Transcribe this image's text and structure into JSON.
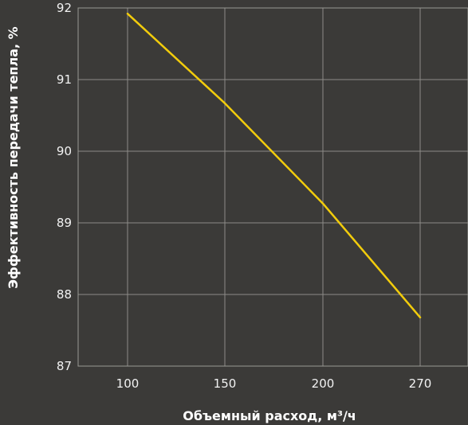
{
  "chart_data": {
    "type": "line",
    "x_categories": [
      "100",
      "150",
      "200",
      "270"
    ],
    "series": [
      {
        "values": [
          91.92,
          90.67,
          89.27,
          87.68
        ]
      }
    ],
    "ylim": [
      87,
      92
    ],
    "yticks": [
      "87",
      "88",
      "89",
      "90",
      "91",
      "92"
    ],
    "xlabel": "Объемный расход, м³/ч",
    "ylabel": "Эффективность передачи тепла, %",
    "grid": true,
    "colors": {
      "line": "#f2cc0c",
      "background": "#3b3a38"
    }
  }
}
